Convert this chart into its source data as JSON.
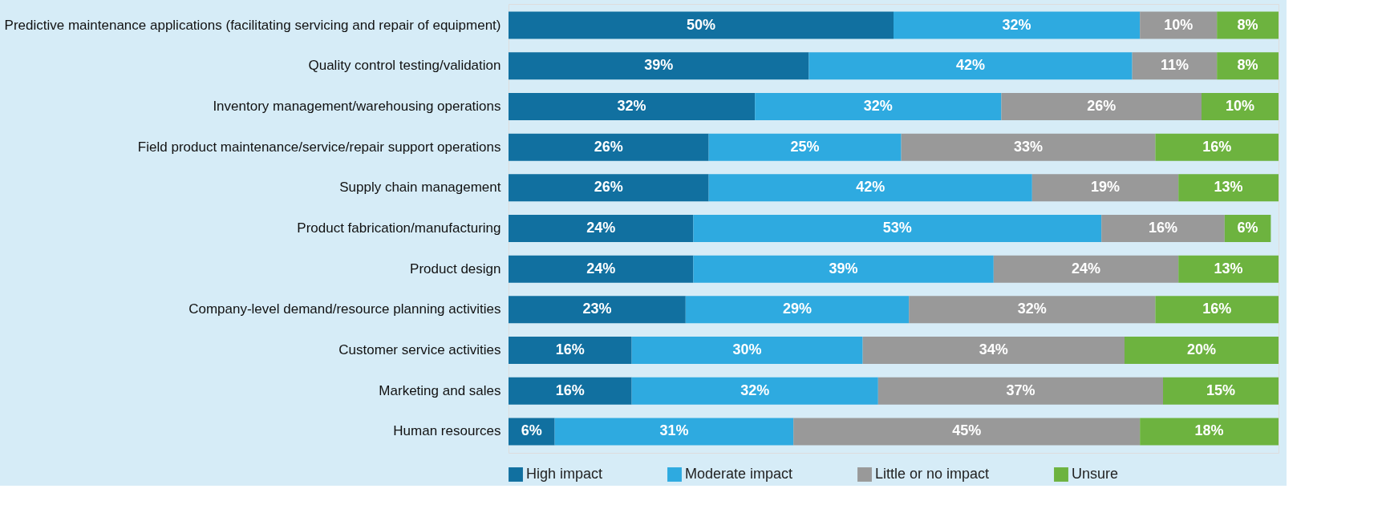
{
  "chart_data": {
    "type": "bar",
    "orientation": "horizontal",
    "stacked": true,
    "legend": "bottom",
    "grid": false,
    "tick_labels": "y",
    "xlim": [
      0,
      100
    ],
    "categories": [
      "Predictive maintenance applications (facilitating servicing and repair of equipment)",
      "Quality control testing/validation",
      "Inventory management/warehousing operations",
      "Field product maintenance/service/repair support operations",
      "Supply chain management",
      "Product fabrication/manufacturing",
      "Product design",
      "Company-level demand/resource planning activities",
      "Customer service activities",
      "Marketing and sales",
      "Human resources"
    ],
    "series": [
      {
        "name": "High impact",
        "color": "#1170a0",
        "values": [
          50,
          39,
          32,
          26,
          26,
          24,
          24,
          23,
          16,
          16,
          6
        ],
        "value_labels": [
          "50%",
          "39%",
          "32%",
          "26%",
          "26%",
          "24%",
          "24%",
          "23%",
          "16%",
          "16%",
          "6%"
        ]
      },
      {
        "name": "Moderate impact",
        "color": "#2eaae0",
        "values": [
          32,
          42,
          32,
          25,
          42,
          53,
          39,
          29,
          30,
          32,
          31
        ],
        "value_labels": [
          "32%",
          "42%",
          "32%",
          "25%",
          "42%",
          "53%",
          "39%",
          "29%",
          "30%",
          "32%",
          "31%"
        ]
      },
      {
        "name": "Little or no impact",
        "color": "#999999",
        "values": [
          10,
          11,
          26,
          33,
          19,
          16,
          24,
          32,
          34,
          37,
          45
        ],
        "value_labels": [
          "10%",
          "11%",
          "26%",
          "33%",
          "19%",
          "16%",
          "24%",
          "32%",
          "34%",
          "37%",
          "45%"
        ]
      },
      {
        "name": "Unsure",
        "color": "#6db33f",
        "values": [
          8,
          8,
          10,
          16,
          13,
          6,
          13,
          16,
          20,
          15,
          18
        ],
        "value_labels": [
          "8%",
          "8%",
          "10%",
          "16%",
          "13%",
          "6%",
          "13%",
          "16%",
          "20%",
          "15%",
          "18%"
        ]
      }
    ]
  }
}
